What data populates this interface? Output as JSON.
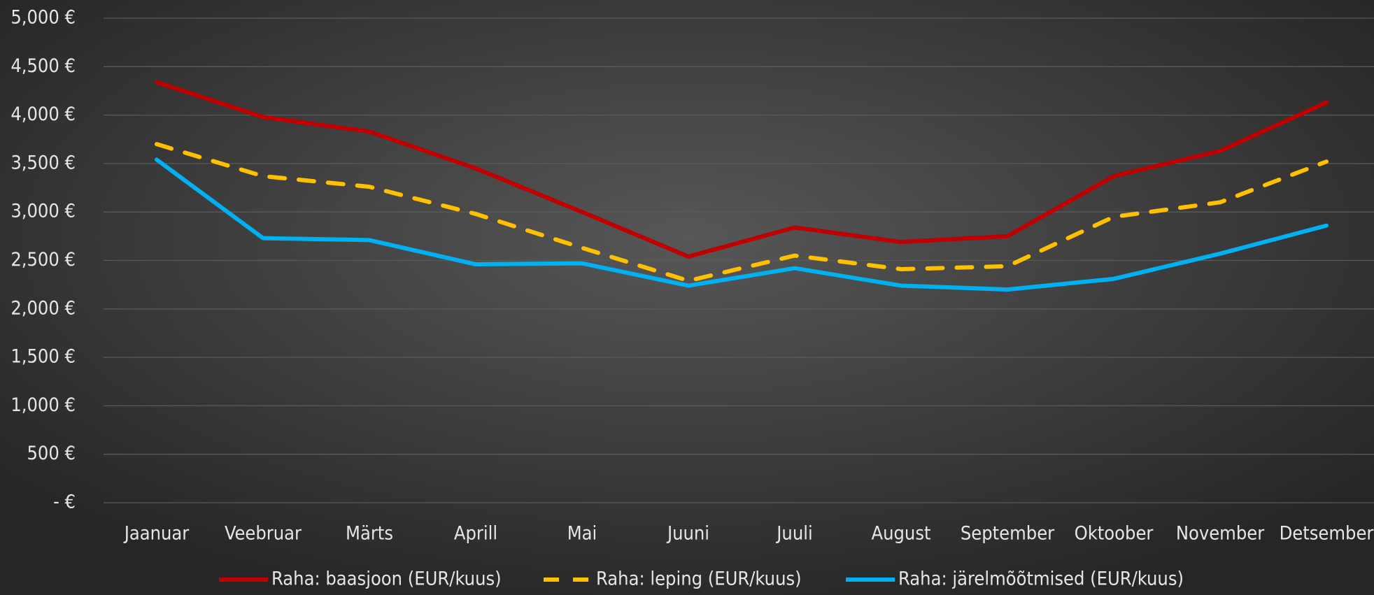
{
  "chart_data": {
    "type": "line",
    "categories": [
      "Jaanuar",
      "Veebruar",
      "Märts",
      "Aprill",
      "Mai",
      "Juuni",
      "Juuli",
      "August",
      "September",
      "Oktoober",
      "November",
      "Detsember"
    ],
    "series": [
      {
        "name": "Raha: baasjoon (EUR/kuus)",
        "color": "#c00000",
        "dash": false,
        "values": [
          4340,
          3980,
          3830,
          3450,
          3000,
          2540,
          2840,
          2690,
          2750,
          3370,
          3630,
          4130
        ]
      },
      {
        "name": "Raha: leping (EUR/kuus)",
        "color": "#ffc000",
        "dash": true,
        "values": [
          3700,
          3370,
          3260,
          2980,
          2630,
          2290,
          2550,
          2410,
          2440,
          2950,
          3100,
          3520
        ]
      },
      {
        "name": "Raha: järelmõõtmised (EUR/kuus)",
        "color": "#00b0f0",
        "dash": false,
        "values": [
          3540,
          2730,
          2710,
          2460,
          2470,
          2240,
          2420,
          2240,
          2200,
          2310,
          2570,
          2860
        ]
      }
    ],
    "ylim": [
      0,
      5000
    ],
    "yticks": [
      {
        "value": 0,
        "label": "- €"
      },
      {
        "value": 500,
        "label": "500 €"
      },
      {
        "value": 1000,
        "label": "1,000 €"
      },
      {
        "value": 1500,
        "label": "1,500 €"
      },
      {
        "value": 2000,
        "label": "2,000 €"
      },
      {
        "value": 2500,
        "label": "2,500 €"
      },
      {
        "value": 3000,
        "label": "3,000 €"
      },
      {
        "value": 3500,
        "label": "3,500 €"
      },
      {
        "value": 4000,
        "label": "4,000 €"
      },
      {
        "value": 4500,
        "label": "4,500 €"
      },
      {
        "value": 5000,
        "label": "5,000 €"
      }
    ],
    "grid": true,
    "legend": "bottom"
  }
}
